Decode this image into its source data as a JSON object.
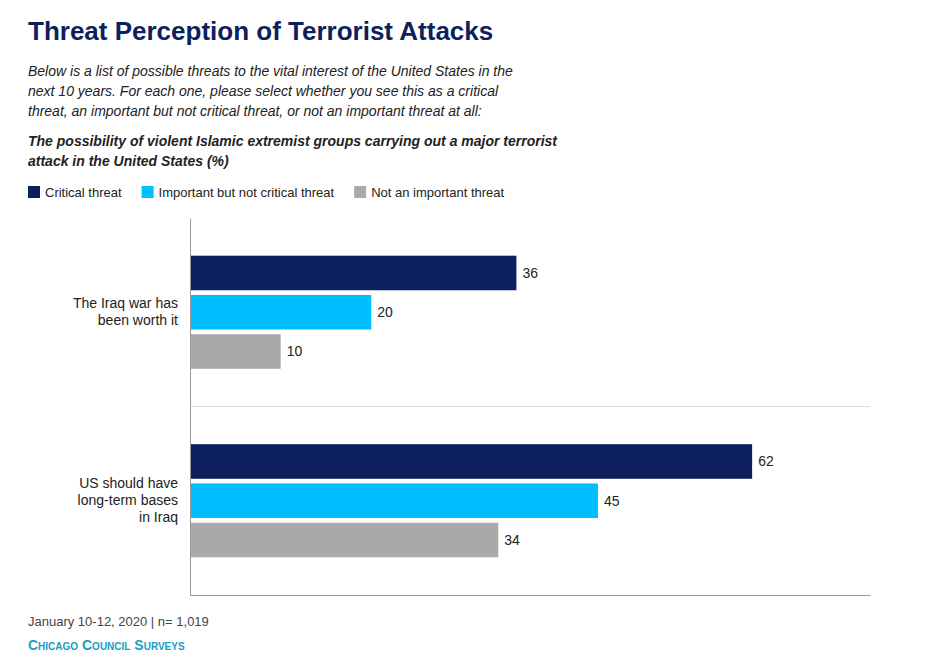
{
  "chart_data": {
    "type": "bar",
    "orientation": "horizontal",
    "title": "Threat Perception of Terrorist Attacks",
    "subtitle": "Below is a list of possible threats to the vital interest of the United States in the\nnext 10 years. For each one, please select whether you see this as a critical\nthreat, an important but not critical threat, or not an important threat at all:",
    "annotations": [
      "The possibility of violent Islamic extremist groups carrying out a major terrorist\nattack in the United States (%)",
      "January 10-12, 2020 | n= 1,019",
      "Chicago Council Surveys"
    ],
    "categories": [
      "The Iraq war has\nbeen worth it",
      "US should have\nlong-term bases\nin Iraq"
    ],
    "series": [
      {
        "name": "Critical threat",
        "color": "#0d1f5c",
        "values": [
          36,
          62
        ]
      },
      {
        "name": "Important but not critical threat",
        "color": "#00bfff",
        "values": [
          20,
          45
        ]
      },
      {
        "name": "Not an important threat",
        "color": "#a9a9a9",
        "values": [
          10,
          34
        ]
      }
    ],
    "xlim": [
      0,
      75
    ],
    "xticks": [],
    "grid": false,
    "legend": "top-left",
    "data_labels": true,
    "tick_labels": "y"
  }
}
